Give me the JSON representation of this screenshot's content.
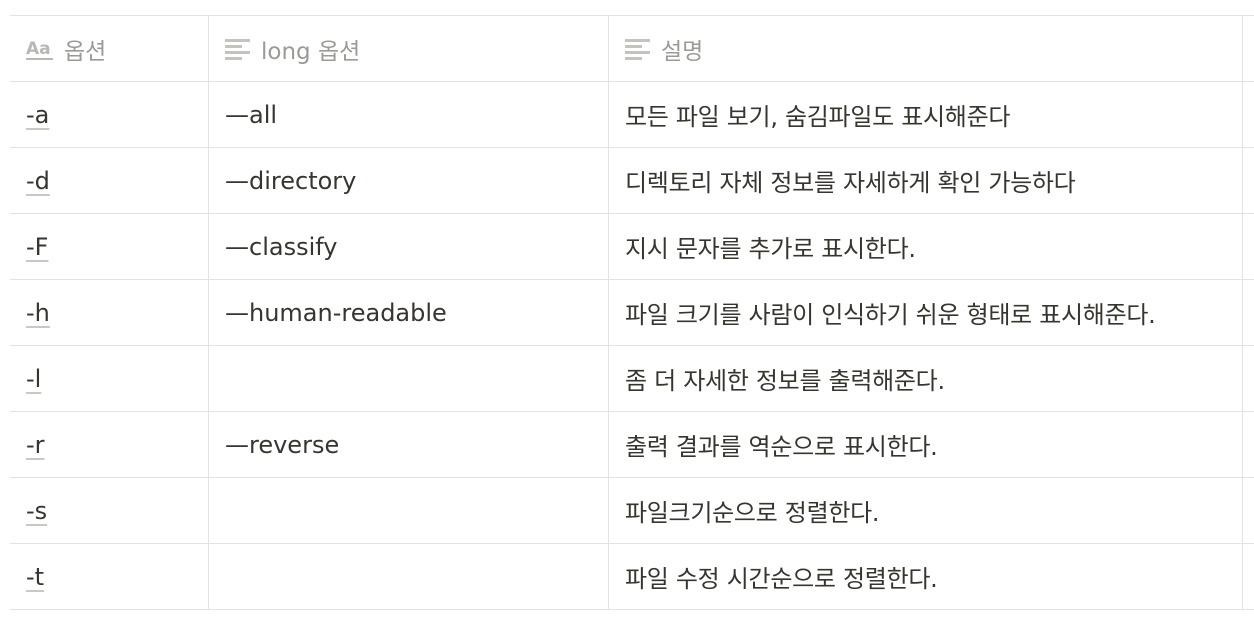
{
  "table": {
    "headers": [
      {
        "label": "옵션",
        "icon": "title-text-icon"
      },
      {
        "label": "long 옵션",
        "icon": "text-lines-icon"
      },
      {
        "label": "설명",
        "icon": "text-lines-icon"
      }
    ],
    "rows": [
      {
        "option": "-a",
        "long": "—all",
        "description": "모든 파일 보기, 숨김파일도 표시해준다"
      },
      {
        "option": "-d",
        "long": "—directory",
        "description": "디렉토리 자체 정보를 자세하게 확인 가능하다"
      },
      {
        "option": "-F",
        "long": "—classify",
        "description": "지시 문자를 추가로 표시한다."
      },
      {
        "option": "-h",
        "long": "—human-readable",
        "description": "파일 크기를 사람이 인식하기 쉬운 형태로 표시해준다."
      },
      {
        "option": "-l",
        "long": "",
        "description": "좀 더 자세한 정보를 출력해준다."
      },
      {
        "option": "-r",
        "long": "—reverse",
        "description": "출력 결과를 역순으로 표시한다."
      },
      {
        "option": "-s",
        "long": "",
        "description": "파일크기순으로 정렬한다."
      },
      {
        "option": "-t",
        "long": "",
        "description": "파일 수정 시간순으로 정렬한다."
      }
    ]
  }
}
